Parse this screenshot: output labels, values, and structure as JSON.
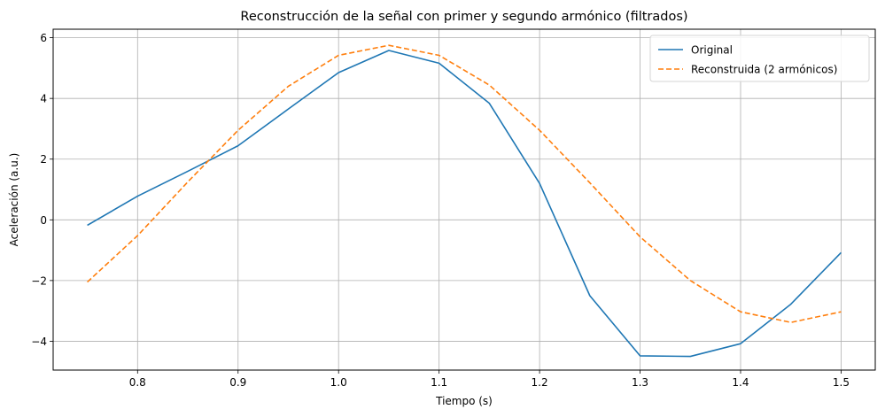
{
  "chart_data": {
    "type": "line",
    "title": "Reconstrucción de la señal con primer y segundo armónico (filtrados)",
    "xlabel": "Tiempo (s)",
    "ylabel": "Aceleración (a.u.)",
    "xlim": [
      0.716,
      1.534
    ],
    "ylim": [
      -4.95,
      6.28
    ],
    "xticks": [
      0.8,
      0.9,
      1.0,
      1.1,
      1.2,
      1.3,
      1.4,
      1.5
    ],
    "xtick_labels": [
      "0.8",
      "0.9",
      "1.0",
      "1.1",
      "1.2",
      "1.3",
      "1.4",
      "1.5"
    ],
    "yticks": [
      -4,
      -2,
      0,
      2,
      4,
      6
    ],
    "ytick_labels": [
      "−4",
      "−2",
      "0",
      "2",
      "4",
      "6"
    ],
    "grid": true,
    "legend_position": "top-right",
    "x": [
      0.75,
      0.8,
      0.85,
      0.9,
      0.95,
      1.0,
      1.05,
      1.1,
      1.15,
      1.2,
      1.25,
      1.3,
      1.35,
      1.4,
      1.45,
      1.5
    ],
    "series": [
      {
        "name": "Original",
        "color": "#1f77b4",
        "style": "solid",
        "values": [
          -0.18,
          0.78,
          1.6,
          2.44,
          3.65,
          4.85,
          5.58,
          5.16,
          3.84,
          1.2,
          -2.5,
          -4.48,
          -4.5,
          -4.08,
          -2.78,
          -1.08
        ]
      },
      {
        "name": "Reconstruida (2 armónicos)",
        "color": "#ff7f0e",
        "style": "dashed",
        "values": [
          -2.05,
          -0.52,
          1.25,
          2.95,
          4.4,
          5.42,
          5.75,
          5.42,
          4.44,
          2.95,
          1.22,
          -0.56,
          -2.0,
          -3.03,
          -3.38,
          -3.03
        ]
      }
    ]
  }
}
